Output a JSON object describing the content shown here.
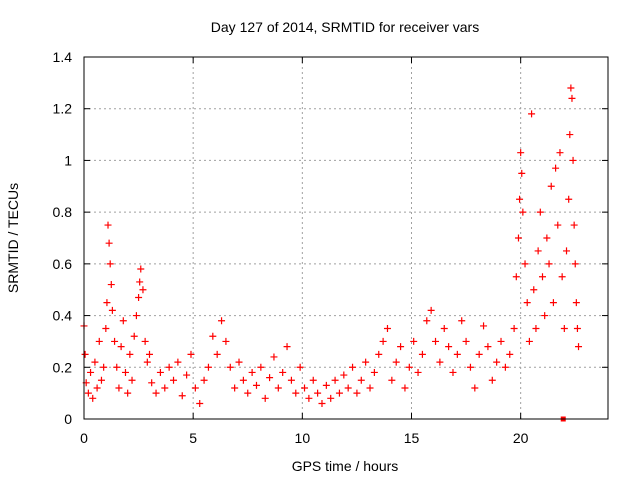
{
  "chart_data": {
    "type": "scatter",
    "title": "Day 127 of 2014, SRMTID for receiver vars",
    "xlabel": "GPS time / hours",
    "ylabel": "SRMTID / TECUs",
    "xlim": [
      0,
      24
    ],
    "ylim": [
      0,
      1.4
    ],
    "xticks": [
      0,
      5,
      10,
      15,
      20
    ],
    "xtick_labels": [
      "0",
      "5",
      "10",
      "15",
      "20"
    ],
    "yticks": [
      0,
      0.2,
      0.4,
      0.6,
      0.8,
      1.0,
      1.2,
      1.4
    ],
    "ytick_labels": [
      "0",
      "0.2",
      "0.4",
      "0.6",
      "0.8",
      "1",
      "1.2",
      "1.4"
    ],
    "grid": true,
    "marker": "+",
    "series": [
      {
        "name": "SRMTID",
        "color": "#ff0000",
        "description": "dense scatter; ~0.05-0.35 TECU most of day, peaks ~0.75 at ~1.1h and ~0.58 at ~2.6h, 0.3-1.28 after ~19.8h",
        "points": [
          {
            "x": 0.0,
            "y": 0.36
          },
          {
            "x": 0.05,
            "y": 0.25
          },
          {
            "x": 0.1,
            "y": 0.14
          },
          {
            "x": 0.2,
            "y": 0.1
          },
          {
            "x": 0.3,
            "y": 0.18
          },
          {
            "x": 0.4,
            "y": 0.08
          },
          {
            "x": 0.5,
            "y": 0.22
          },
          {
            "x": 0.6,
            "y": 0.12
          },
          {
            "x": 0.7,
            "y": 0.3
          },
          {
            "x": 0.8,
            "y": 0.15
          },
          {
            "x": 0.9,
            "y": 0.2
          },
          {
            "x": 1.0,
            "y": 0.35
          },
          {
            "x": 1.05,
            "y": 0.45
          },
          {
            "x": 1.1,
            "y": 0.75
          },
          {
            "x": 1.15,
            "y": 0.68
          },
          {
            "x": 1.2,
            "y": 0.6
          },
          {
            "x": 1.25,
            "y": 0.52
          },
          {
            "x": 1.3,
            "y": 0.42
          },
          {
            "x": 1.4,
            "y": 0.3
          },
          {
            "x": 1.5,
            "y": 0.2
          },
          {
            "x": 1.6,
            "y": 0.12
          },
          {
            "x": 1.7,
            "y": 0.28
          },
          {
            "x": 1.8,
            "y": 0.38
          },
          {
            "x": 1.9,
            "y": 0.18
          },
          {
            "x": 2.0,
            "y": 0.1
          },
          {
            "x": 2.1,
            "y": 0.25
          },
          {
            "x": 2.2,
            "y": 0.15
          },
          {
            "x": 2.3,
            "y": 0.32
          },
          {
            "x": 2.4,
            "y": 0.4
          },
          {
            "x": 2.5,
            "y": 0.47
          },
          {
            "x": 2.55,
            "y": 0.53
          },
          {
            "x": 2.6,
            "y": 0.58
          },
          {
            "x": 2.7,
            "y": 0.5
          },
          {
            "x": 2.8,
            "y": 0.3
          },
          {
            "x": 2.9,
            "y": 0.22
          },
          {
            "x": 3.0,
            "y": 0.25
          },
          {
            "x": 3.1,
            "y": 0.14
          },
          {
            "x": 3.3,
            "y": 0.1
          },
          {
            "x": 3.5,
            "y": 0.18
          },
          {
            "x": 3.7,
            "y": 0.12
          },
          {
            "x": 3.9,
            "y": 0.2
          },
          {
            "x": 4.1,
            "y": 0.15
          },
          {
            "x": 4.3,
            "y": 0.22
          },
          {
            "x": 4.5,
            "y": 0.09
          },
          {
            "x": 4.7,
            "y": 0.17
          },
          {
            "x": 4.9,
            "y": 0.25
          },
          {
            "x": 5.1,
            "y": 0.12
          },
          {
            "x": 5.3,
            "y": 0.06
          },
          {
            "x": 5.5,
            "y": 0.15
          },
          {
            "x": 5.7,
            "y": 0.2
          },
          {
            "x": 5.9,
            "y": 0.32
          },
          {
            "x": 6.1,
            "y": 0.25
          },
          {
            "x": 6.3,
            "y": 0.38
          },
          {
            "x": 6.5,
            "y": 0.3
          },
          {
            "x": 6.7,
            "y": 0.2
          },
          {
            "x": 6.9,
            "y": 0.12
          },
          {
            "x": 7.1,
            "y": 0.22
          },
          {
            "x": 7.3,
            "y": 0.15
          },
          {
            "x": 7.5,
            "y": 0.1
          },
          {
            "x": 7.7,
            "y": 0.18
          },
          {
            "x": 7.9,
            "y": 0.13
          },
          {
            "x": 8.1,
            "y": 0.2
          },
          {
            "x": 8.3,
            "y": 0.08
          },
          {
            "x": 8.5,
            "y": 0.16
          },
          {
            "x": 8.7,
            "y": 0.24
          },
          {
            "x": 8.9,
            "y": 0.12
          },
          {
            "x": 9.1,
            "y": 0.18
          },
          {
            "x": 9.3,
            "y": 0.28
          },
          {
            "x": 9.5,
            "y": 0.15
          },
          {
            "x": 9.7,
            "y": 0.1
          },
          {
            "x": 9.9,
            "y": 0.2
          },
          {
            "x": 10.1,
            "y": 0.12
          },
          {
            "x": 10.3,
            "y": 0.08
          },
          {
            "x": 10.5,
            "y": 0.15
          },
          {
            "x": 10.7,
            "y": 0.1
          },
          {
            "x": 10.9,
            "y": 0.06
          },
          {
            "x": 11.1,
            "y": 0.13
          },
          {
            "x": 11.3,
            "y": 0.08
          },
          {
            "x": 11.5,
            "y": 0.15
          },
          {
            "x": 11.7,
            "y": 0.1
          },
          {
            "x": 11.9,
            "y": 0.17
          },
          {
            "x": 12.1,
            "y": 0.12
          },
          {
            "x": 12.3,
            "y": 0.2
          },
          {
            "x": 12.5,
            "y": 0.1
          },
          {
            "x": 12.7,
            "y": 0.15
          },
          {
            "x": 12.9,
            "y": 0.22
          },
          {
            "x": 13.1,
            "y": 0.12
          },
          {
            "x": 13.3,
            "y": 0.18
          },
          {
            "x": 13.5,
            "y": 0.25
          },
          {
            "x": 13.7,
            "y": 0.3
          },
          {
            "x": 13.9,
            "y": 0.35
          },
          {
            "x": 14.1,
            "y": 0.15
          },
          {
            "x": 14.3,
            "y": 0.22
          },
          {
            "x": 14.5,
            "y": 0.28
          },
          {
            "x": 14.7,
            "y": 0.12
          },
          {
            "x": 14.9,
            "y": 0.2
          },
          {
            "x": 15.1,
            "y": 0.3
          },
          {
            "x": 15.3,
            "y": 0.18
          },
          {
            "x": 15.5,
            "y": 0.25
          },
          {
            "x": 15.7,
            "y": 0.38
          },
          {
            "x": 15.9,
            "y": 0.42
          },
          {
            "x": 16.1,
            "y": 0.3
          },
          {
            "x": 16.3,
            "y": 0.22
          },
          {
            "x": 16.5,
            "y": 0.35
          },
          {
            "x": 16.7,
            "y": 0.28
          },
          {
            "x": 16.9,
            "y": 0.18
          },
          {
            "x": 17.1,
            "y": 0.25
          },
          {
            "x": 17.3,
            "y": 0.38
          },
          {
            "x": 17.5,
            "y": 0.3
          },
          {
            "x": 17.7,
            "y": 0.2
          },
          {
            "x": 17.9,
            "y": 0.12
          },
          {
            "x": 18.1,
            "y": 0.25
          },
          {
            "x": 18.3,
            "y": 0.36
          },
          {
            "x": 18.5,
            "y": 0.28
          },
          {
            "x": 18.7,
            "y": 0.15
          },
          {
            "x": 18.9,
            "y": 0.22
          },
          {
            "x": 19.1,
            "y": 0.3
          },
          {
            "x": 19.3,
            "y": 0.2
          },
          {
            "x": 19.5,
            "y": 0.25
          },
          {
            "x": 19.7,
            "y": 0.35
          },
          {
            "x": 19.8,
            "y": 0.55
          },
          {
            "x": 19.9,
            "y": 0.7
          },
          {
            "x": 19.95,
            "y": 0.85
          },
          {
            "x": 20.0,
            "y": 1.03
          },
          {
            "x": 20.05,
            "y": 0.95
          },
          {
            "x": 20.1,
            "y": 0.8
          },
          {
            "x": 20.2,
            "y": 0.6
          },
          {
            "x": 20.3,
            "y": 0.45
          },
          {
            "x": 20.4,
            "y": 0.3
          },
          {
            "x": 20.5,
            "y": 1.18
          },
          {
            "x": 20.6,
            "y": 0.5
          },
          {
            "x": 20.7,
            "y": 0.35
          },
          {
            "x": 20.8,
            "y": 0.65
          },
          {
            "x": 20.9,
            "y": 0.8
          },
          {
            "x": 21.0,
            "y": 0.55
          },
          {
            "x": 21.1,
            "y": 0.4
          },
          {
            "x": 21.2,
            "y": 0.7
          },
          {
            "x": 21.3,
            "y": 0.6
          },
          {
            "x": 21.4,
            "y": 0.9
          },
          {
            "x": 21.5,
            "y": 0.45
          },
          {
            "x": 21.6,
            "y": 0.97
          },
          {
            "x": 21.7,
            "y": 0.75
          },
          {
            "x": 21.8,
            "y": 1.03
          },
          {
            "x": 21.9,
            "y": 0.55
          },
          {
            "x": 22.0,
            "y": 0.35
          },
          {
            "x": 22.1,
            "y": 0.65
          },
          {
            "x": 22.2,
            "y": 0.85
          },
          {
            "x": 22.25,
            "y": 1.1
          },
          {
            "x": 22.3,
            "y": 1.28
          },
          {
            "x": 22.35,
            "y": 1.24
          },
          {
            "x": 22.4,
            "y": 1.0
          },
          {
            "x": 22.45,
            "y": 0.75
          },
          {
            "x": 22.5,
            "y": 0.6
          },
          {
            "x": 22.55,
            "y": 0.45
          },
          {
            "x": 22.6,
            "y": 0.35
          },
          {
            "x": 22.65,
            "y": 0.28
          },
          {
            "x": 21.95,
            "y": 0.0
          }
        ]
      }
    ]
  }
}
